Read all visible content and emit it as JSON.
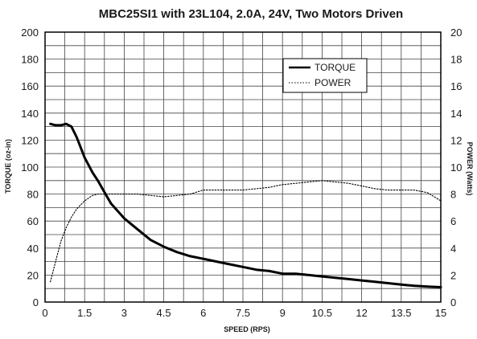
{
  "chart_data": {
    "type": "line",
    "title": "MBC25SI1 with 23L104, 2.0A, 24V, Two Motors Driven",
    "xlabel": "SPEED (RPS)",
    "ylabel_left": "TORQUE (oz-in)",
    "ylabel_right": "POWER (Watts)",
    "xlim": [
      0,
      15
    ],
    "ylim_left": [
      0,
      200
    ],
    "ylim_right": [
      0,
      20
    ],
    "x_ticks": [
      "0",
      "1.5",
      "3",
      "4.5",
      "6",
      "7.5",
      "9",
      "10.5",
      "12",
      "13.5",
      "15"
    ],
    "y_left_ticks": [
      "0",
      "20",
      "40",
      "60",
      "80",
      "100",
      "120",
      "140",
      "160",
      "180",
      "200"
    ],
    "y_right_ticks": [
      "0",
      "2",
      "4",
      "6",
      "8",
      "10",
      "12",
      "14",
      "16",
      "18",
      "20"
    ],
    "grid": true,
    "legend_position": "top-right",
    "series": [
      {
        "name": "TORQUE",
        "axis": "left",
        "style": "solid",
        "color": "#000000",
        "x": [
          0.2,
          0.4,
          0.6,
          0.8,
          1.0,
          1.2,
          1.5,
          1.8,
          2.0,
          2.5,
          3.0,
          3.5,
          4.0,
          4.5,
          5.0,
          5.5,
          6.0,
          6.5,
          7.0,
          7.5,
          8.0,
          8.5,
          9.0,
          9.5,
          10.0,
          10.5,
          11.0,
          11.5,
          12.0,
          12.5,
          13.0,
          13.5,
          14.0,
          14.5,
          15.0
        ],
        "y": [
          132,
          131,
          131,
          132,
          130,
          122,
          107,
          96,
          90,
          73,
          62,
          54,
          46,
          41,
          37,
          34,
          32,
          30,
          28,
          26,
          24,
          23,
          21,
          21,
          20,
          19,
          18,
          17,
          16,
          15,
          14,
          13,
          12,
          11.5,
          11
        ]
      },
      {
        "name": "POWER",
        "axis": "right",
        "style": "dotted",
        "color": "#000000",
        "x": [
          0.2,
          0.4,
          0.6,
          0.8,
          1.0,
          1.2,
          1.5,
          1.8,
          2.0,
          2.5,
          3.0,
          3.5,
          4.0,
          4.5,
          5.0,
          5.5,
          6.0,
          6.5,
          7.0,
          7.5,
          8.0,
          8.5,
          9.0,
          9.5,
          10.0,
          10.5,
          11.0,
          11.5,
          12.0,
          12.5,
          13.0,
          13.5,
          14.0,
          14.5,
          15.0
        ],
        "y": [
          1.5,
          3.0,
          4.5,
          5.5,
          6.3,
          6.9,
          7.5,
          7.9,
          8.0,
          8.0,
          8.0,
          8.0,
          7.9,
          7.8,
          7.9,
          8.0,
          8.3,
          8.3,
          8.3,
          8.3,
          8.4,
          8.5,
          8.7,
          8.8,
          8.9,
          9.0,
          8.9,
          8.8,
          8.6,
          8.4,
          8.3,
          8.3,
          8.3,
          8.1,
          7.5
        ]
      }
    ]
  }
}
